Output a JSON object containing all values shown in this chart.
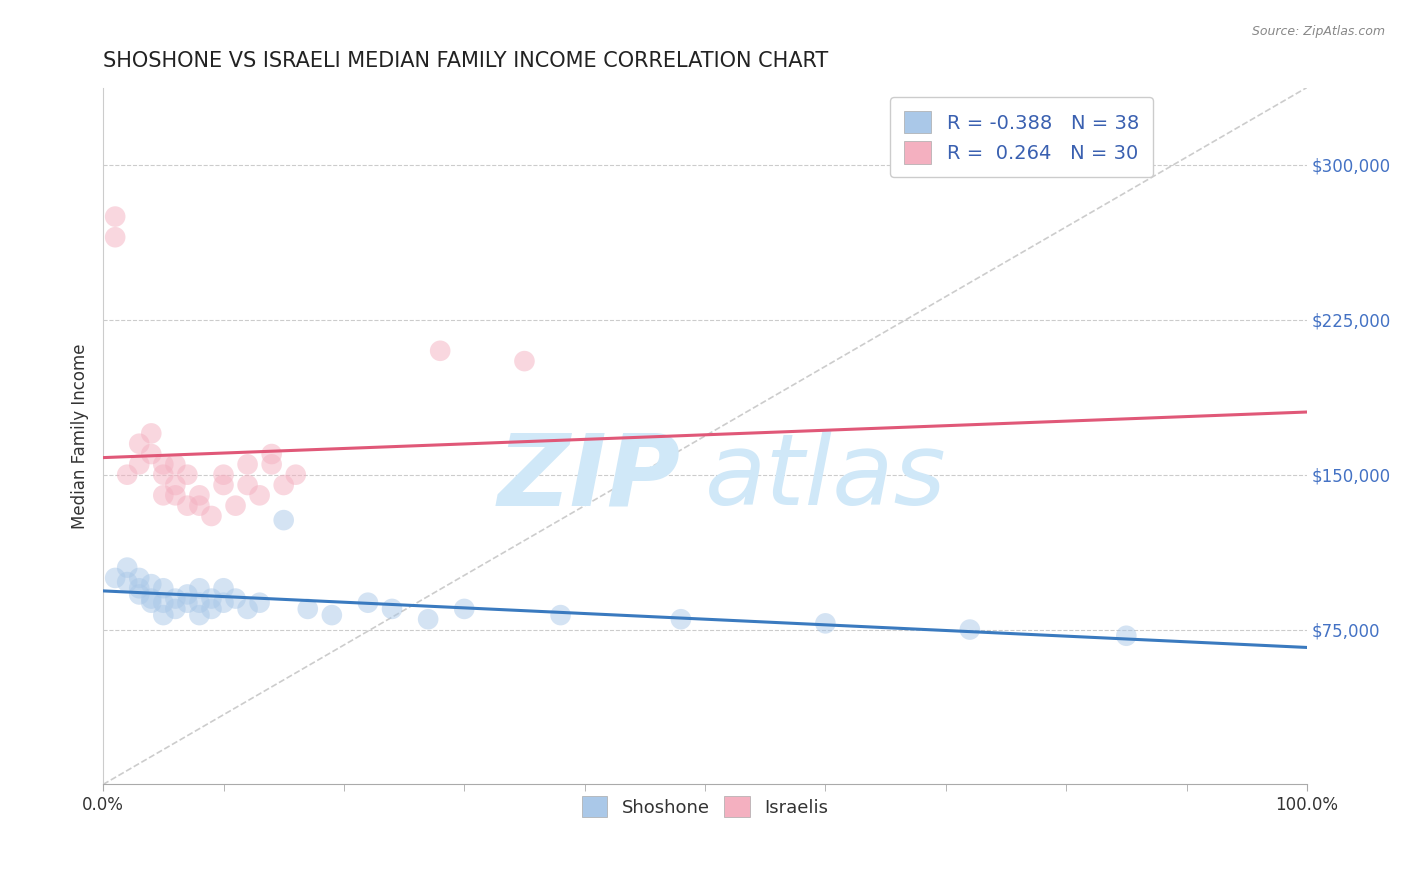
{
  "title": "SHOSHONE VS ISRAELI MEDIAN FAMILY INCOME CORRELATION CHART",
  "source_text": "Source: ZipAtlas.com",
  "ylabel": "Median Family Income",
  "xlim": [
    0.0,
    1.0
  ],
  "ylim": [
    0,
    337500
  ],
  "yticks": [
    0,
    75000,
    150000,
    225000,
    300000
  ],
  "ytick_labels": [
    "",
    "$75,000",
    "$150,000",
    "$225,000",
    "$300,000"
  ],
  "xtick_labels": [
    "0.0%",
    "100.0%"
  ],
  "grid_color": "#cccccc",
  "background_color": "#ffffff",
  "shoshone_color": "#aac8e8",
  "israeli_color": "#f4b0c0",
  "shoshone_line_color": "#3a7abf",
  "israeli_line_color": "#e05878",
  "ref_line_color": "#c0c0c0",
  "legend_color": "#3a60b0",
  "legend_R_shoshone": "-0.388",
  "legend_N_shoshone": "38",
  "legend_R_israeli": "0.264",
  "legend_N_israeli": "30",
  "watermark_zip": "ZIP",
  "watermark_atlas": "atlas",
  "watermark_color": "#d0e8f8",
  "shoshone_x": [
    0.01,
    0.02,
    0.02,
    0.03,
    0.03,
    0.03,
    0.04,
    0.04,
    0.04,
    0.05,
    0.05,
    0.05,
    0.06,
    0.06,
    0.07,
    0.07,
    0.08,
    0.08,
    0.08,
    0.09,
    0.09,
    0.1,
    0.1,
    0.11,
    0.12,
    0.13,
    0.15,
    0.17,
    0.19,
    0.22,
    0.24,
    0.27,
    0.3,
    0.38,
    0.48,
    0.6,
    0.72,
    0.85
  ],
  "shoshone_y": [
    100000,
    105000,
    98000,
    95000,
    92000,
    100000,
    90000,
    97000,
    88000,
    95000,
    88000,
    82000,
    90000,
    85000,
    88000,
    92000,
    95000,
    88000,
    82000,
    90000,
    85000,
    95000,
    88000,
    90000,
    85000,
    88000,
    128000,
    85000,
    82000,
    88000,
    85000,
    80000,
    85000,
    82000,
    80000,
    78000,
    75000,
    72000
  ],
  "israeli_x": [
    0.01,
    0.01,
    0.02,
    0.03,
    0.03,
    0.04,
    0.04,
    0.05,
    0.05,
    0.05,
    0.06,
    0.06,
    0.06,
    0.07,
    0.07,
    0.08,
    0.08,
    0.09,
    0.1,
    0.1,
    0.11,
    0.12,
    0.12,
    0.13,
    0.14,
    0.14,
    0.15,
    0.16,
    0.28,
    0.35
  ],
  "israeli_y": [
    275000,
    265000,
    150000,
    165000,
    155000,
    160000,
    170000,
    150000,
    140000,
    155000,
    145000,
    155000,
    140000,
    135000,
    150000,
    140000,
    135000,
    130000,
    150000,
    145000,
    135000,
    145000,
    155000,
    140000,
    160000,
    155000,
    145000,
    150000,
    210000,
    205000
  ],
  "title_fontsize": 15,
  "axis_label_fontsize": 12,
  "tick_fontsize": 12,
  "legend_fontsize": 14,
  "marker_size": 220,
  "marker_alpha": 0.5,
  "line_width": 2.2
}
